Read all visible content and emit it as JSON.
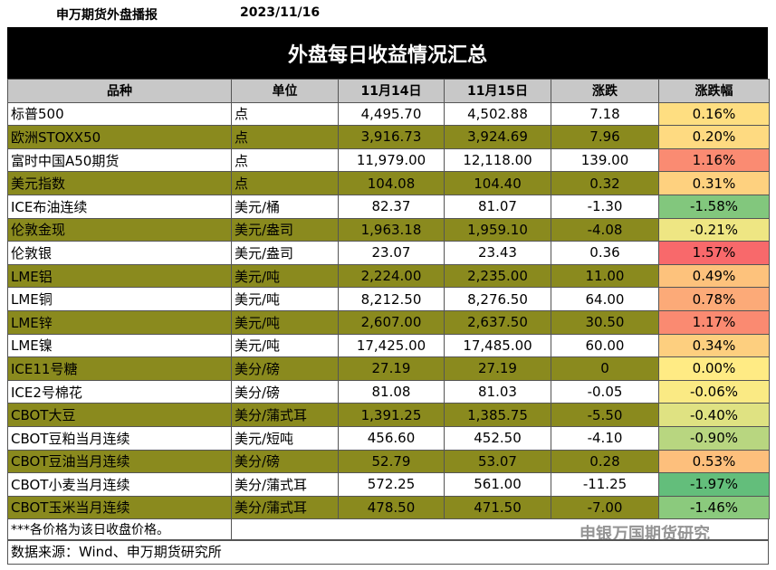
{
  "header": {
    "source_name": "申万期货外盘播报",
    "date": "2023/11/16"
  },
  "title": "外盘每日收益情况汇总",
  "table": {
    "columns": [
      "品种",
      "单位",
      "11月14日",
      "11月15日",
      "涨跌",
      "涨跌幅"
    ],
    "rows": [
      [
        "标普500",
        "点",
        "4,495.70",
        "4,502.88",
        "7.18",
        "0.16%"
      ],
      [
        "欧洲STOXX50",
        "点",
        "3,916.73",
        "3,924.69",
        "7.96",
        "0.20%"
      ],
      [
        "富时中国A50期货",
        "点",
        "11,979.00",
        "12,118.00",
        "139.00",
        "1.16%"
      ],
      [
        "美元指数",
        "点",
        "104.08",
        "104.40",
        "0.32",
        "0.31%"
      ],
      [
        "ICE布油连续",
        "美元/桶",
        "82.37",
        "81.07",
        "-1.30",
        "-1.58%"
      ],
      [
        "伦敦金现",
        "美元/盎司",
        "1,963.18",
        "1,959.10",
        "-4.08",
        "-0.21%"
      ],
      [
        "伦敦银",
        "美元/盎司",
        "23.07",
        "23.43",
        "0.36",
        "1.57%"
      ],
      [
        "LME铝",
        "美元/吨",
        "2,224.00",
        "2,235.00",
        "11.00",
        "0.49%"
      ],
      [
        "LME铜",
        "美元/吨",
        "8,212.50",
        "8,276.50",
        "64.00",
        "0.78%"
      ],
      [
        "LME锌",
        "美元/吨",
        "2,607.00",
        "2,637.50",
        "30.50",
        "1.17%"
      ],
      [
        "LME镍",
        "美元/吨",
        "17,425.00",
        "17,485.00",
        "60.00",
        "0.34%"
      ],
      [
        "ICE11号糖",
        "美分/磅",
        "27.19",
        "27.19",
        "0",
        "0.00%"
      ],
      [
        "ICE2号棉花",
        "美分/磅",
        "81.08",
        "81.03",
        "-0.05",
        "-0.06%"
      ],
      [
        "CBOT大豆",
        "美分/蒲式耳",
        "1,391.25",
        "1,385.75",
        "-5.50",
        "-0.40%"
      ],
      [
        "CBOT豆粕当月连续",
        "美元/短吨",
        "456.60",
        "452.50",
        "-4.10",
        "-0.90%"
      ],
      [
        "CBOT豆油当月连续",
        "美分/磅",
        "52.79",
        "53.07",
        "0.28",
        "0.53%"
      ],
      [
        "CBOT小麦当月连续",
        "美分/蒲式耳",
        "572.25",
        "561.00",
        "-11.25",
        "-1.97%"
      ],
      [
        "CBOT玉米当月连续",
        "美分/蒲式耳",
        "478.50",
        "471.50",
        "-7.00",
        "-1.46%"
      ]
    ]
  },
  "note": "***各价格为该日收盘价格。",
  "source": "数据来源：Wind、申万期货研究所",
  "watermark": "申银万国期货研究"
}
